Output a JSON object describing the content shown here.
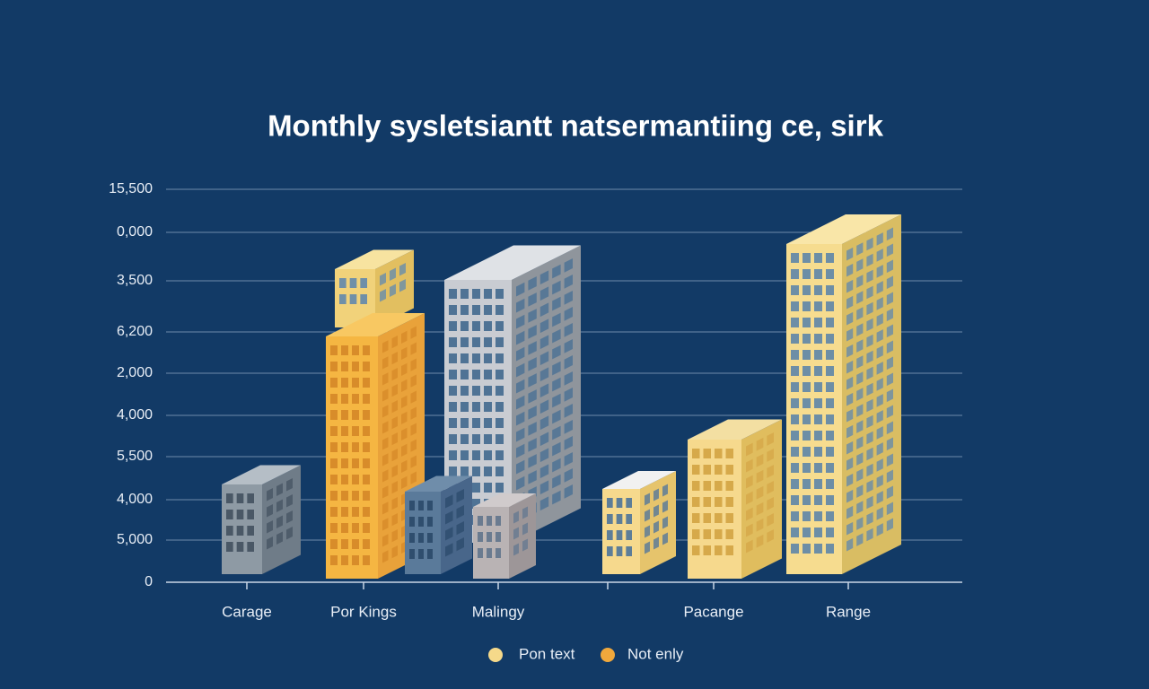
{
  "chart_data": {
    "title": "Monthly sysletsiantt natsermantiing ce, sirk",
    "y_axis_labels": [
      "15,500",
      "0,000",
      "3,500",
      "6,200",
      "2,000",
      "4,000",
      "5,500",
      "4,000",
      "5,000",
      "0"
    ],
    "categories": [
      "Carage",
      "Por Kings",
      "Malingy",
      "Pacange",
      "Range"
    ],
    "legend": [
      {
        "name": "Pon text",
        "color": "#f5d98a"
      },
      {
        "name": "Not enly",
        "color": "#f0a83c"
      }
    ]
  }
}
